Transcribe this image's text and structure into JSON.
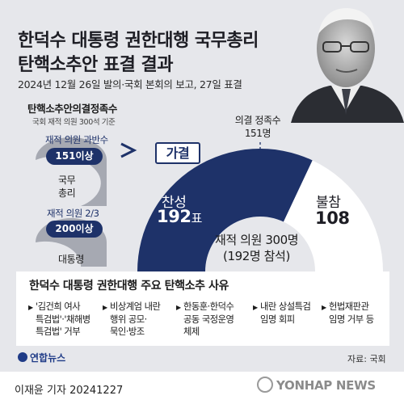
{
  "title_line1": "한덕수 대통령 권한대행 국무총리",
  "title_line2": "탄핵소추안 표결 결과",
  "subtitle": "2024년 12월 26일 발의·국회 본회의 보고, 27일 표결",
  "quorum": {
    "heading": "탄핵소추안의결정족수",
    "basis": "국회 재적 의원 300석 기준",
    "pm_rule": "재적 의원 과반수",
    "pm_threshold": "151이상",
    "pm_target_l1": "국무",
    "pm_target_l2": "총리",
    "pres_rule": "재적 의원 2/3",
    "pres_threshold": "200이상",
    "pres_target": "대통령"
  },
  "result": {
    "passed_label": "가결",
    "quorum_label_l1": "의결 정족수",
    "quorum_label_l2": "151명",
    "yes_label": "찬성",
    "yes_value": "192",
    "yes_unit": "표",
    "abstain_label": "불참",
    "abstain_value": "108",
    "total_l1": "재적 의원 300명",
    "total_l2": "(192명 참석)",
    "yes_count": 192,
    "total_count": 300
  },
  "reasons": {
    "heading": "한덕수 대통령 권한대행 주요 탄핵소추 사유",
    "items": [
      {
        "l1": "'김건희 여사",
        "l2": "특검법'·'채해병",
        "l3": "특검법' 거부"
      },
      {
        "l1": "비상계엄 내란",
        "l2": "행위 공모·",
        "l3": "묵인·방조"
      },
      {
        "l1": "한동훈·한덕수",
        "l2": "공동 국정운영",
        "l3": "체제"
      },
      {
        "l1": "내란 상설특검",
        "l2": "임명 회피",
        "l3": ""
      },
      {
        "l1": "헌법재판관",
        "l2": "임명 거부 등",
        "l3": ""
      }
    ]
  },
  "footer": {
    "logo": "연합뉴스",
    "source": "자료: 국회",
    "byline": "이재윤 기자  20241227",
    "watermark": "YONHAP NEWS"
  },
  "colors": {
    "navy": "#1e3269",
    "light_blue": "#a9b4cf",
    "gray_shape": "#9a9da8",
    "background": "#e6e7eb"
  }
}
